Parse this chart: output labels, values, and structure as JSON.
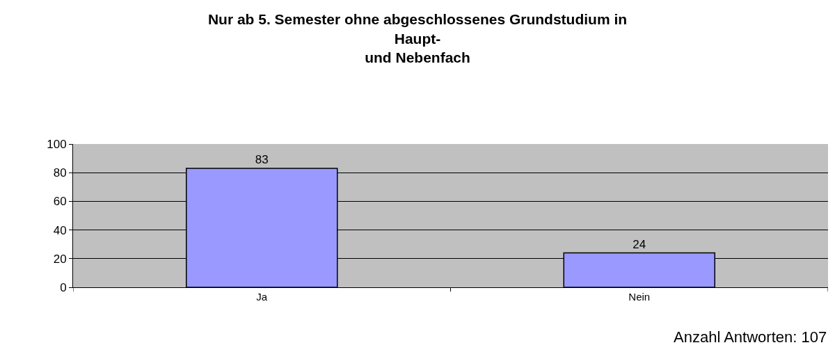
{
  "chart_data": {
    "type": "bar",
    "title": "Nur ab 5. Semester ohne abgeschlossenes Grundstudium in\nHaupt-\nund Nebenfach",
    "categories": [
      "Ja",
      "Nein"
    ],
    "values": [
      83,
      24
    ],
    "color": "#9999ff",
    "ylim": [
      0,
      100
    ],
    "yticks": [
      0,
      20,
      40,
      60,
      80,
      100
    ],
    "grid": "y",
    "legend": false,
    "data_labels": true,
    "annotations": [
      "Anzahl Antworten: 107"
    ]
  }
}
